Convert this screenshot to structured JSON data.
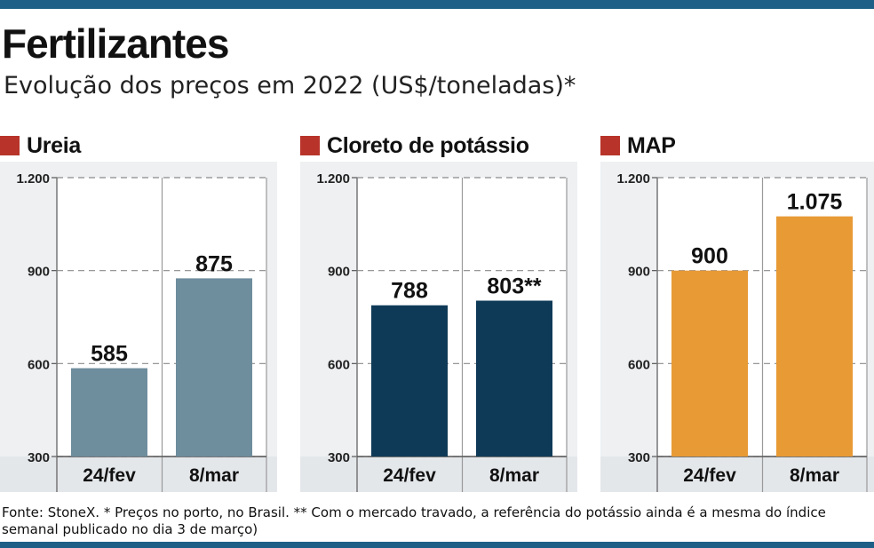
{
  "title": "Fertilizantes",
  "subtitle": "Evolução dos preços em 2022 (US$/toneladas)*",
  "colors": {
    "accent": "#b8342a",
    "topbar": "#1d5f86"
  },
  "chart_data": [
    {
      "type": "bar",
      "title": "Ureia",
      "categories": [
        "24/fev",
        "8/mar"
      ],
      "values": [
        585,
        875
      ],
      "value_labels": [
        "585",
        "875"
      ],
      "ylim": [
        300,
        1200
      ],
      "yticks": [
        300,
        600,
        900,
        1200
      ],
      "ytick_labels": [
        "300",
        "600",
        "900",
        "1.200"
      ],
      "bar_color": "#6e8d9d",
      "grid": true
    },
    {
      "type": "bar",
      "title": "Cloreto de potássio",
      "categories": [
        "24/fev",
        "8/mar"
      ],
      "values": [
        788,
        803
      ],
      "value_labels": [
        "788",
        "803**"
      ],
      "ylim": [
        300,
        1200
      ],
      "yticks": [
        300,
        600,
        900,
        1200
      ],
      "ytick_labels": [
        "300",
        "600",
        "900",
        "1.200"
      ],
      "bar_color": "#0f3a57",
      "grid": true
    },
    {
      "type": "bar",
      "title": "MAP",
      "categories": [
        "24/fev",
        "8/mar"
      ],
      "values": [
        900,
        1075
      ],
      "value_labels": [
        "900",
        "1.075"
      ],
      "ylim": [
        300,
        1200
      ],
      "yticks": [
        300,
        600,
        900,
        1200
      ],
      "ytick_labels": [
        "300",
        "600",
        "900",
        "1.200"
      ],
      "bar_color": "#e89a35",
      "grid": true
    }
  ],
  "footnote": "Fonte: StoneX. * Preços no porto, no Brasil. ** Com o mercado travado, a referência do potássio ainda é a mesma do índice semanal publicado no dia 3 de março)"
}
